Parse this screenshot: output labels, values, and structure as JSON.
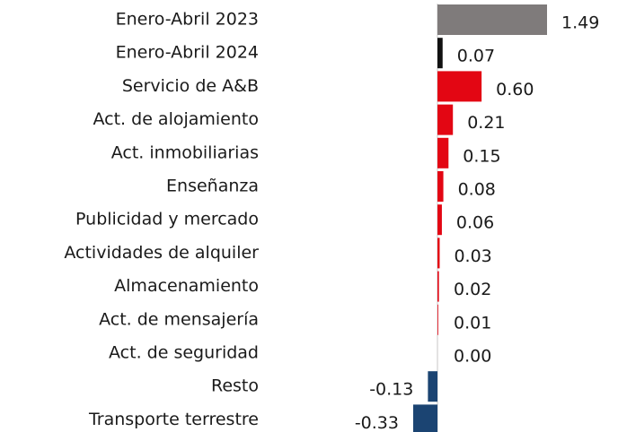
{
  "chart_data": {
    "type": "bar",
    "orientation": "horizontal",
    "categories": [
      "Enero-Abril 2023",
      "Enero-Abril 2024",
      "Servicio de A&B",
      "Act. de alojamiento",
      "Act. inmobiliarias",
      "Enseñanza",
      "Publicidad y mercado",
      "Actividades de alquiler",
      "Almacenamiento",
      "Act. de mensajería",
      "Act. de seguridad",
      "Resto",
      "Transporte terrestre"
    ],
    "values": [
      1.49,
      0.07,
      0.6,
      0.21,
      0.15,
      0.08,
      0.06,
      0.03,
      0.02,
      0.01,
      0.0,
      -0.13,
      -0.33
    ],
    "value_labels": [
      "1.49",
      "0.07",
      "0.60",
      "0.21",
      "0.15",
      "0.08",
      "0.06",
      "0.03",
      "0.02",
      "0.01",
      "0.00",
      "-0.13",
      "-0.33"
    ],
    "colors": [
      "#7f7b7b",
      "#111111",
      "#e30613",
      "#e30613",
      "#e30613",
      "#e30613",
      "#e30613",
      "#e30613",
      "#e30613",
      "#e30613",
      "#e30613",
      "#1b4472",
      "#1b4472"
    ]
  }
}
